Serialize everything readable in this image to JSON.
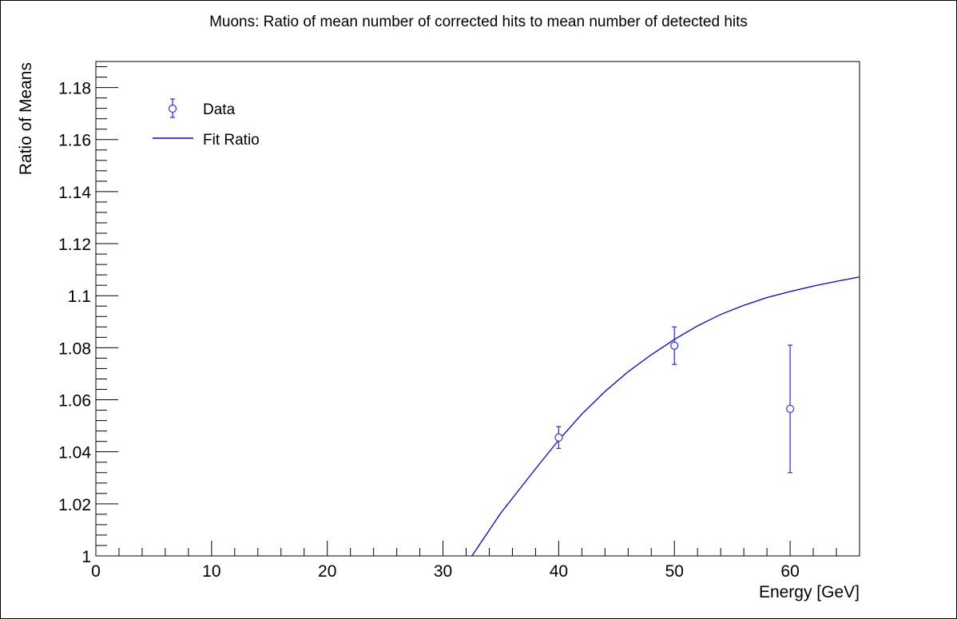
{
  "chart_data": {
    "type": "scatter",
    "title": "Muons: Ratio of mean number of corrected hits to mean number of detected hits",
    "xlabel": "Energy [GeV]",
    "ylabel": "Ratio of Means",
    "xlim": [
      0,
      66
    ],
    "ylim": [
      1.0,
      1.19
    ],
    "x_ticks": [
      0,
      10,
      20,
      30,
      40,
      50,
      60
    ],
    "x_tick_labels": [
      "0",
      "10",
      "20",
      "30",
      "40",
      "50",
      "60"
    ],
    "y_ticks": [
      1.0,
      1.02,
      1.04,
      1.06,
      1.08,
      1.1,
      1.12,
      1.14,
      1.16,
      1.18
    ],
    "y_tick_labels": [
      "1",
      "1.02",
      "1.04",
      "1.06",
      "1.08",
      "1.1",
      "1.12",
      "1.14",
      "1.16",
      "1.18"
    ],
    "grid": false,
    "legend_position": "top-left",
    "series": [
      {
        "name": "Data",
        "kind": "points-with-errors",
        "color": "#3333ff",
        "x": [
          40,
          50,
          60
        ],
        "y": [
          1.0455,
          1.0808,
          1.0565
        ],
        "yerr": [
          0.0042,
          0.0072,
          0.0245
        ]
      },
      {
        "name": "Fit Ratio",
        "kind": "line",
        "color": "#0000ee",
        "x": [
          32.5,
          35,
          38,
          40,
          42,
          44,
          46,
          48,
          50,
          52,
          54,
          56,
          58,
          60,
          62,
          64,
          66
        ],
        "y": [
          1.0,
          1.0165,
          1.0335,
          1.0445,
          1.0545,
          1.0632,
          1.0708,
          1.0773,
          1.0832,
          1.0884,
          1.0928,
          1.0963,
          1.0993,
          1.1016,
          1.1037,
          1.1055,
          1.1072
        ]
      }
    ]
  }
}
